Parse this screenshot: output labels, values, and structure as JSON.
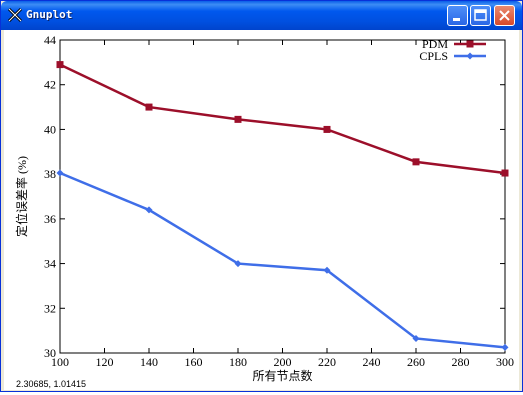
{
  "window": {
    "title": "Gnuplot",
    "buttons": {
      "minimize": "minimize",
      "maximize": "maximize",
      "close": "close"
    }
  },
  "status": {
    "coordinates": "2.30685, 1.01415"
  },
  "colors": {
    "pdm": "#9c0f2a",
    "cpls": "#3f6ee8",
    "titlebar": "#0054e3"
  },
  "chart_data": {
    "type": "line",
    "xlabel": "所有节点数",
    "ylabel": "定位误差率 (%)",
    "xlim": [
      100,
      300
    ],
    "ylim": [
      30,
      44
    ],
    "xticks": [
      100,
      120,
      140,
      160,
      180,
      200,
      220,
      240,
      260,
      280,
      300
    ],
    "yticks": [
      30,
      32,
      34,
      36,
      38,
      40,
      42,
      44
    ],
    "grid": false,
    "legend": "top-right",
    "x": [
      100,
      140,
      180,
      220,
      260,
      300
    ],
    "series": [
      {
        "name": "PDM",
        "marker": "square",
        "color": "#9c0f2a",
        "values": [
          42.9,
          41.0,
          40.45,
          40.0,
          38.55,
          38.05
        ]
      },
      {
        "name": "CPLS",
        "marker": "diamond",
        "color": "#3f6ee8",
        "values": [
          38.05,
          36.4,
          34.0,
          33.7,
          30.65,
          30.25
        ]
      }
    ]
  }
}
